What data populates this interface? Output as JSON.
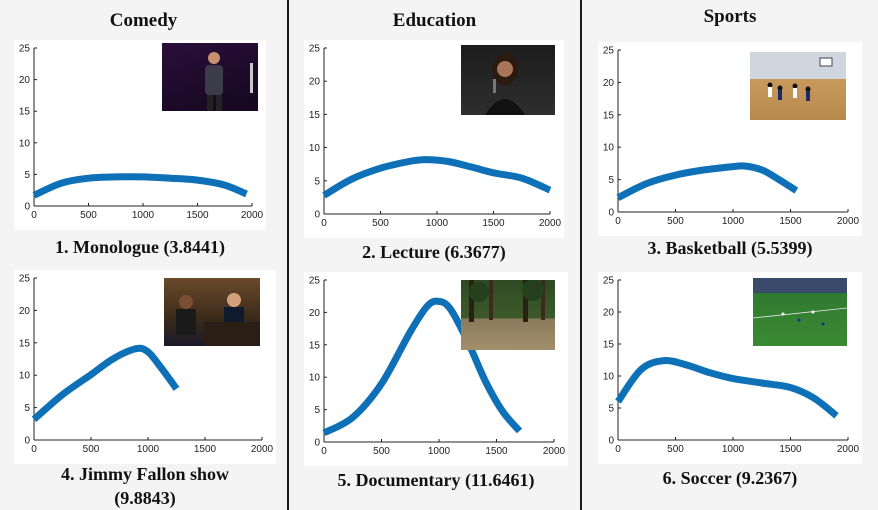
{
  "columns": [
    {
      "title": "Comedy"
    },
    {
      "title": "Education"
    },
    {
      "title": "Sports"
    }
  ],
  "panels": [
    {
      "caption": "1. Monologue (3.8441)",
      "thumbnail": "stand-up comedian on stage"
    },
    {
      "caption": "2. Lecture (6.3677)",
      "thumbnail": "woman speaking into microphone"
    },
    {
      "caption": "3. Basketball (5.5399)",
      "thumbnail": "indoor basketball game"
    },
    {
      "caption": "4. Jimmy Fallon show",
      "caption_line2": "(9.8843)",
      "thumbnail": "talk show hosts at desk"
    },
    {
      "caption": "5. Documentary (11.6461)",
      "thumbnail": "forest clearing"
    },
    {
      "caption": "6. Soccer (9.2367)",
      "thumbnail": "soccer match broadcast"
    }
  ],
  "colors": {
    "curve": "#0e71b8",
    "axis": "#222222"
  },
  "chart_data": [
    {
      "type": "line",
      "xlim": [
        0,
        2000
      ],
      "ylim": [
        0,
        25
      ],
      "xticks": [
        "0",
        "500",
        "1000",
        "1500",
        "2000"
      ],
      "yticks": [
        "0",
        "5",
        "10",
        "15",
        "20",
        "25"
      ],
      "x": [
        0,
        250,
        500,
        750,
        1000,
        1250,
        1500,
        1750,
        1950
      ],
      "y": [
        1.7,
        3.6,
        4.4,
        4.6,
        4.6,
        4.4,
        4.1,
        3.3,
        1.9
      ]
    },
    {
      "type": "line",
      "xlim": [
        0,
        2000
      ],
      "ylim": [
        0,
        25
      ],
      "xticks": [
        "0",
        "500",
        "1000",
        "1500",
        "2000"
      ],
      "yticks": [
        "0",
        "5",
        "10",
        "15",
        "20",
        "25"
      ],
      "x": [
        0,
        250,
        500,
        750,
        900,
        1100,
        1300,
        1500,
        1750,
        2000
      ],
      "y": [
        2.8,
        5.3,
        6.9,
        7.9,
        8.2,
        7.9,
        7.1,
        6.2,
        5.4,
        3.6
      ]
    },
    {
      "type": "line",
      "xlim": [
        0,
        2000
      ],
      "ylim": [
        0,
        25
      ],
      "xticks": [
        "0",
        "500",
        "1000",
        "1500",
        "2000"
      ],
      "yticks": [
        "0",
        "5",
        "10",
        "15",
        "20",
        "25"
      ],
      "x": [
        0,
        250,
        500,
        750,
        1000,
        1100,
        1250,
        1400,
        1550
      ],
      "y": [
        2.2,
        4.4,
        5.7,
        6.5,
        7.0,
        7.1,
        6.5,
        5.0,
        3.3
      ]
    },
    {
      "type": "line",
      "xlim": [
        0,
        2000
      ],
      "ylim": [
        0,
        25
      ],
      "xticks": [
        "0",
        "500",
        "1000",
        "1500",
        "2000"
      ],
      "yticks": [
        "0",
        "5",
        "10",
        "15",
        "20",
        "25"
      ],
      "x": [
        0,
        250,
        500,
        700,
        900,
        1000,
        1100,
        1250
      ],
      "y": [
        3.2,
        7.0,
        10.1,
        12.6,
        14.1,
        13.6,
        11.5,
        7.9
      ]
    },
    {
      "type": "line",
      "xlim": [
        0,
        2000
      ],
      "ylim": [
        0,
        25
      ],
      "xticks": [
        "0",
        "500",
        "1000",
        "1500",
        "2000"
      ],
      "yticks": [
        "0",
        "5",
        "10",
        "15",
        "20",
        "25"
      ],
      "x": [
        0,
        250,
        500,
        750,
        900,
        1000,
        1100,
        1250,
        1400,
        1550,
        1700
      ],
      "y": [
        1.4,
        3.8,
        9.0,
        17.0,
        21.0,
        21.7,
        20.5,
        15.5,
        9.5,
        4.8,
        1.7
      ]
    },
    {
      "type": "line",
      "xlim": [
        0,
        2000
      ],
      "ylim": [
        0,
        25
      ],
      "xticks": [
        "0",
        "500",
        "1000",
        "1500",
        "2000"
      ],
      "yticks": [
        "0",
        "5",
        "10",
        "15",
        "20",
        "25"
      ],
      "x": [
        0,
        200,
        400,
        600,
        800,
        1000,
        1250,
        1500,
        1700,
        1900
      ],
      "y": [
        6.0,
        11.0,
        12.4,
        11.7,
        10.5,
        9.6,
        8.9,
        8.2,
        6.6,
        3.8
      ]
    }
  ]
}
